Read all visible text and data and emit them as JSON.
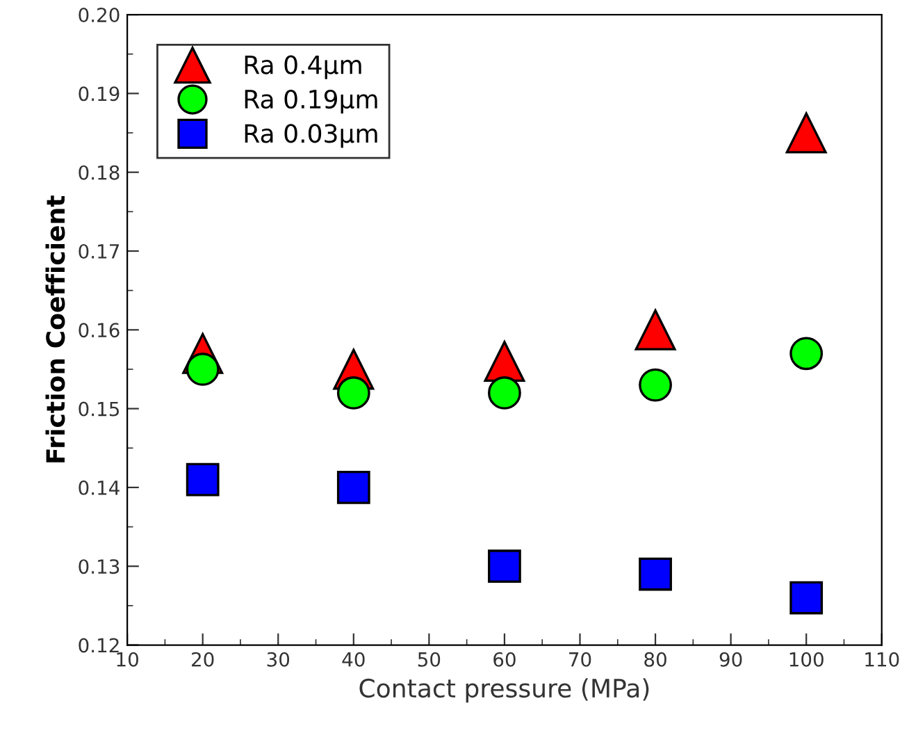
{
  "chart_data": {
    "type": "scatter",
    "xlabel": "Contact pressure (MPa)",
    "ylabel": "Friction Coefficient",
    "x": [
      20,
      40,
      60,
      80,
      100
    ],
    "series": [
      {
        "name": "Ra 0.4μm",
        "color": "#ff0000",
        "marker": "triangle",
        "values": [
          0.157,
          0.155,
          0.156,
          0.16,
          0.185
        ]
      },
      {
        "name": "Ra 0.19μm",
        "color": "#00ff00",
        "marker": "circle",
        "values": [
          0.155,
          0.152,
          0.152,
          0.153,
          0.157
        ]
      },
      {
        "name": "Ra 0.03μm",
        "color": "#0000ff",
        "marker": "square",
        "values": [
          0.141,
          0.14,
          0.13,
          0.129,
          0.126
        ]
      }
    ],
    "xlim": [
      10,
      110
    ],
    "ylim": [
      0.12,
      0.2
    ],
    "xticks": [
      10,
      {
        "value": 15,
        "label": null
      },
      20,
      {
        "value": 25,
        "label": null
      },
      30,
      {
        "value": 35,
        "label": null
      },
      40,
      {
        "value": 45,
        "label": null
      },
      50,
      {
        "value": 55,
        "label": null
      },
      60,
      {
        "value": 65,
        "label": null
      },
      70,
      {
        "value": 75,
        "label": null
      },
      80,
      {
        "value": 85,
        "label": null
      },
      90,
      {
        "value": 95,
        "label": null
      },
      100,
      {
        "value": 105,
        "label": null
      },
      110
    ],
    "yticks": [
      {
        "value": 0.12,
        "label": "0.12"
      },
      {
        "value": 0.125,
        "label": null
      },
      {
        "value": 0.13,
        "label": "0.13"
      },
      {
        "value": 0.135,
        "label": null
      },
      {
        "value": 0.14,
        "label": "0.14"
      },
      {
        "value": 0.145,
        "label": null
      },
      {
        "value": 0.15,
        "label": "0.15"
      },
      {
        "value": 0.155,
        "label": null
      },
      {
        "value": 0.16,
        "label": "0.16"
      },
      {
        "value": 0.165,
        "label": null
      },
      {
        "value": 0.17,
        "label": "0.17"
      },
      {
        "value": 0.175,
        "label": null
      },
      {
        "value": 0.18,
        "label": "0.18"
      },
      {
        "value": 0.185,
        "label": null
      },
      {
        "value": 0.19,
        "label": "0.19"
      },
      {
        "value": 0.195,
        "label": null
      },
      {
        "value": 0.2,
        "label": "0.20"
      }
    ],
    "legend": "top left",
    "grid": false
  }
}
